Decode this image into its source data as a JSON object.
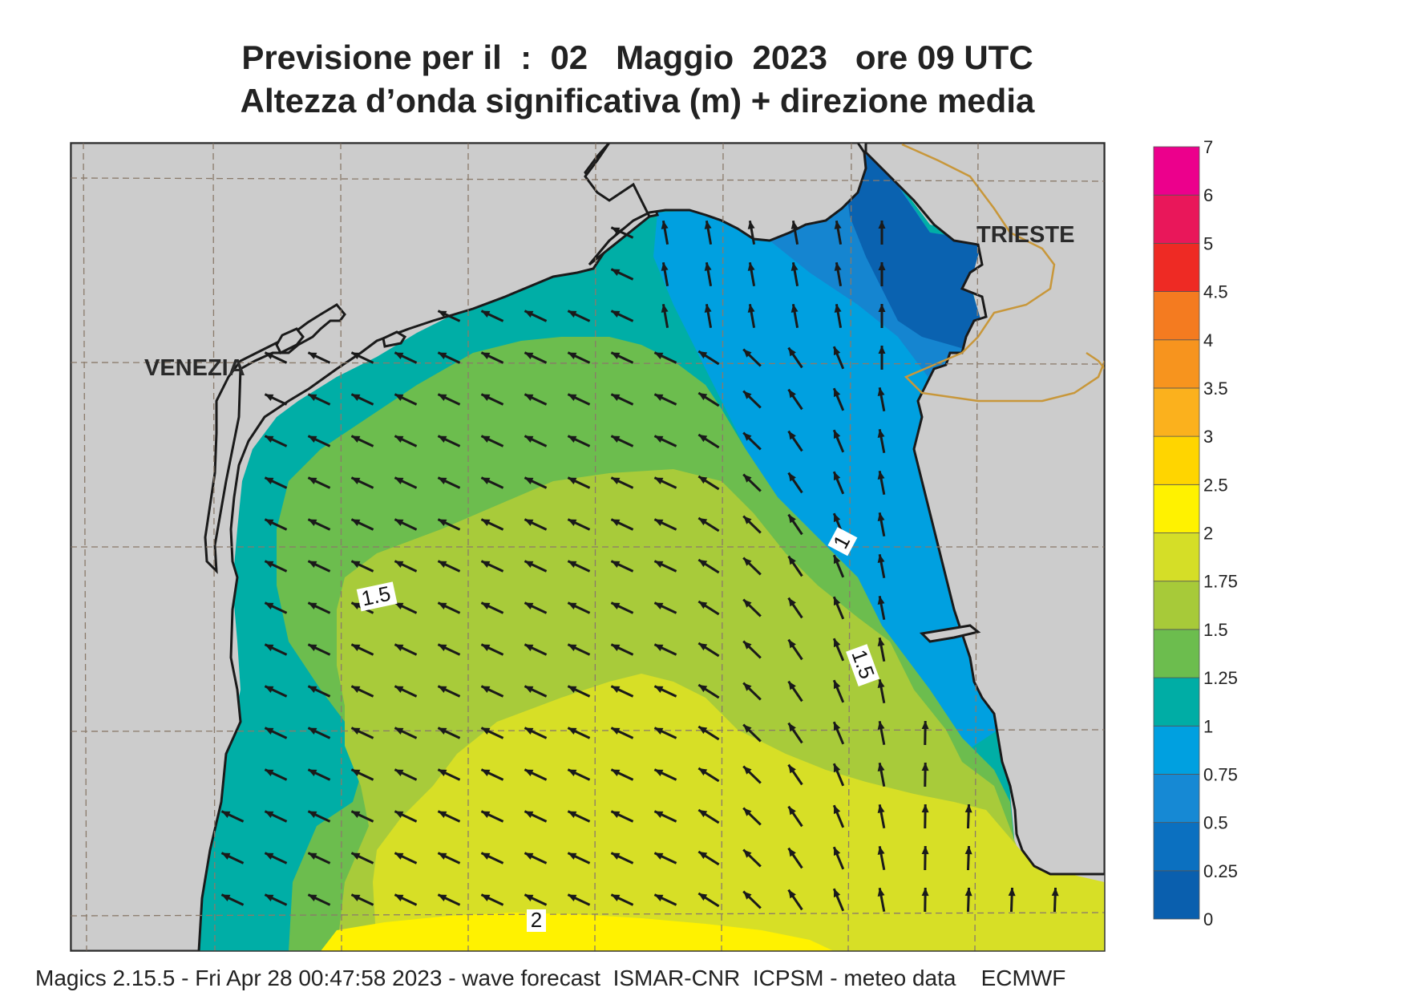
{
  "header": {
    "title_line1": "Previsione per il  :  02   Maggio  2023   ore 09 UTC",
    "title_line2": "Altezza d’onda significativa (m) + direzione media"
  },
  "map": {
    "cities": [
      {
        "id": "venezia",
        "label": "VENEZIA"
      },
      {
        "id": "trieste",
        "label": "TRIESTE"
      }
    ],
    "contour_labels": [
      "1.5",
      "1",
      "1.5",
      "2"
    ],
    "colors": {
      "land": "#cccccc",
      "coast": "#1a1a1a",
      "border": "#c8973a",
      "grid": "#8a7a6a",
      "arrow": "#1a1a1a",
      "band_0_0.25": "#0a62b0",
      "band_0.25_0.5": "#0b79c8",
      "band_0.5_0.75": "#1f8fd8",
      "band_0.75_1": "#00a0e0",
      "band_1_1.25": "#00aea6",
      "band_1.25_1.5": "#6cbd4e",
      "band_1.5_1.75": "#a8cb3a",
      "band_1.75_2": "#d7df26",
      "band_2_2.5": "#fff200"
    },
    "mean_wave_direction": "toward north-west, turning north in the north-eastern sector"
  },
  "legend": {
    "ticks": [
      "0",
      "0.25",
      "0.5",
      "0.75",
      "1",
      "1.25",
      "1.5",
      "1.75",
      "2",
      "2.5",
      "3",
      "3.5",
      "4",
      "4.5",
      "5",
      "6",
      "7"
    ],
    "colors": [
      "#0a5fae",
      "#0b70c0",
      "#1689d4",
      "#00a0e0",
      "#00ada5",
      "#6cbd4e",
      "#a7ca39",
      "#d5de27",
      "#fff200",
      "#ffd500",
      "#fbb11d",
      "#f7941e",
      "#f47b20",
      "#ee2a24",
      "#e9175a",
      "#ec008c"
    ]
  },
  "footer": {
    "text": "Magics 2.15.5 - Fri Apr 28 00:47:58 2023 - wave forecast  ISMAR-CNR  ICPSM - meteo data    ECMWF"
  }
}
